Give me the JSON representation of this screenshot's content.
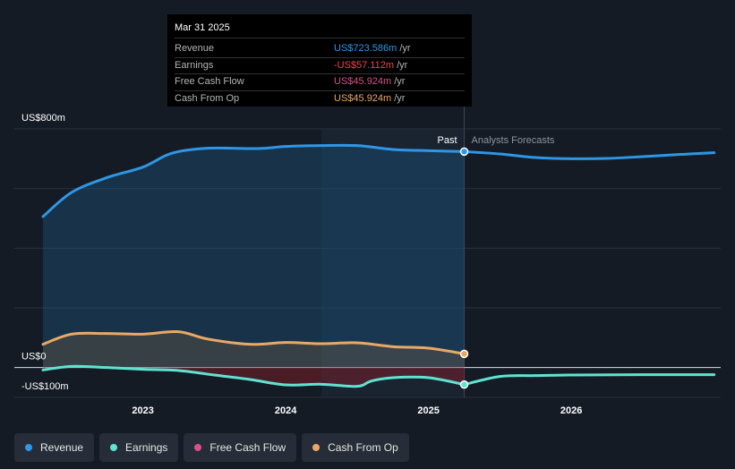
{
  "tooltip": {
    "date": "Mar 31 2025",
    "rows": [
      {
        "label": "Revenue",
        "value": "US$723.586m",
        "unit": "/yr",
        "color": "#2d97e6"
      },
      {
        "label": "Earnings",
        "value": "-US$57.112m",
        "unit": "/yr",
        "color": "#f0444c"
      },
      {
        "label": "Free Cash Flow",
        "value": "US$45.924m",
        "unit": "/yr",
        "color": "#d9508a"
      },
      {
        "label": "Cash From Op",
        "value": "US$45.924m",
        "unit": "/yr",
        "color": "#eaa865"
      }
    ]
  },
  "legend": [
    {
      "label": "Revenue",
      "color": "#2d97e6"
    },
    {
      "label": "Earnings",
      "color": "#5fe3d2"
    },
    {
      "label": "Free Cash Flow",
      "color": "#d9508a"
    },
    {
      "label": "Cash From Op",
      "color": "#eaa865"
    }
  ],
  "chart_data": {
    "type": "line",
    "ylim": [
      -100,
      800
    ],
    "y_tick_labels": [
      {
        "value": 800,
        "label": "US$800m"
      },
      {
        "value": 0,
        "label": "US$0"
      },
      {
        "value": -100,
        "label": "-US$100m"
      }
    ],
    "x_ticks": [
      {
        "year": 2023,
        "label": "2023"
      },
      {
        "year": 2024,
        "label": "2024"
      },
      {
        "year": 2025,
        "label": "2025"
      },
      {
        "year": 2026,
        "label": "2026"
      }
    ],
    "past_label": "Past",
    "forecast_label": "Analysts Forecasts",
    "divider_year": 2025.25,
    "series": [
      {
        "name": "Revenue",
        "color": "#2d97e6",
        "x": [
          2022.3,
          2022.5,
          2022.75,
          2023.0,
          2023.2,
          2023.45,
          2023.8,
          2024.0,
          2024.25,
          2024.5,
          2024.75,
          2025.0,
          2025.25
        ],
        "values": [
          506,
          587,
          637,
          672,
          718,
          735,
          734,
          741,
          744,
          744,
          731,
          727,
          724
        ],
        "forecast_x": [
          2025.25,
          2025.5,
          2025.75,
          2026.0,
          2026.25,
          2026.5,
          2026.75,
          2027.0
        ],
        "forecast_values": [
          724,
          716,
          704,
          700,
          701,
          707,
          714,
          720
        ]
      },
      {
        "name": "Earnings",
        "color": "#5fe3d2",
        "x": [
          2022.3,
          2022.5,
          2022.75,
          2023.0,
          2023.25,
          2023.5,
          2023.75,
          2024.0,
          2024.25,
          2024.5,
          2024.6,
          2024.75,
          2025.0,
          2025.25
        ],
        "values": [
          -8,
          4,
          0,
          -6,
          -10,
          -25,
          -40,
          -58,
          -56,
          -63,
          -45,
          -34,
          -34,
          -57
        ],
        "forecast_x": [
          2025.25,
          2025.5,
          2025.75,
          2026.0,
          2026.5,
          2027.0
        ],
        "forecast_values": [
          -57,
          -30,
          -27,
          -25,
          -24,
          -24
        ]
      },
      {
        "name": "Free Cash Flow",
        "color": "#d9508a",
        "x": [],
        "values": []
      },
      {
        "name": "Cash From Op",
        "color": "#eaa865",
        "x": [
          2022.3,
          2022.5,
          2022.75,
          2023.0,
          2023.25,
          2023.45,
          2023.75,
          2024.0,
          2024.25,
          2024.5,
          2024.75,
          2025.0,
          2025.25
        ],
        "values": [
          78,
          112,
          114,
          112,
          120,
          96,
          78,
          84,
          80,
          83,
          70,
          65,
          46
        ]
      }
    ]
  }
}
